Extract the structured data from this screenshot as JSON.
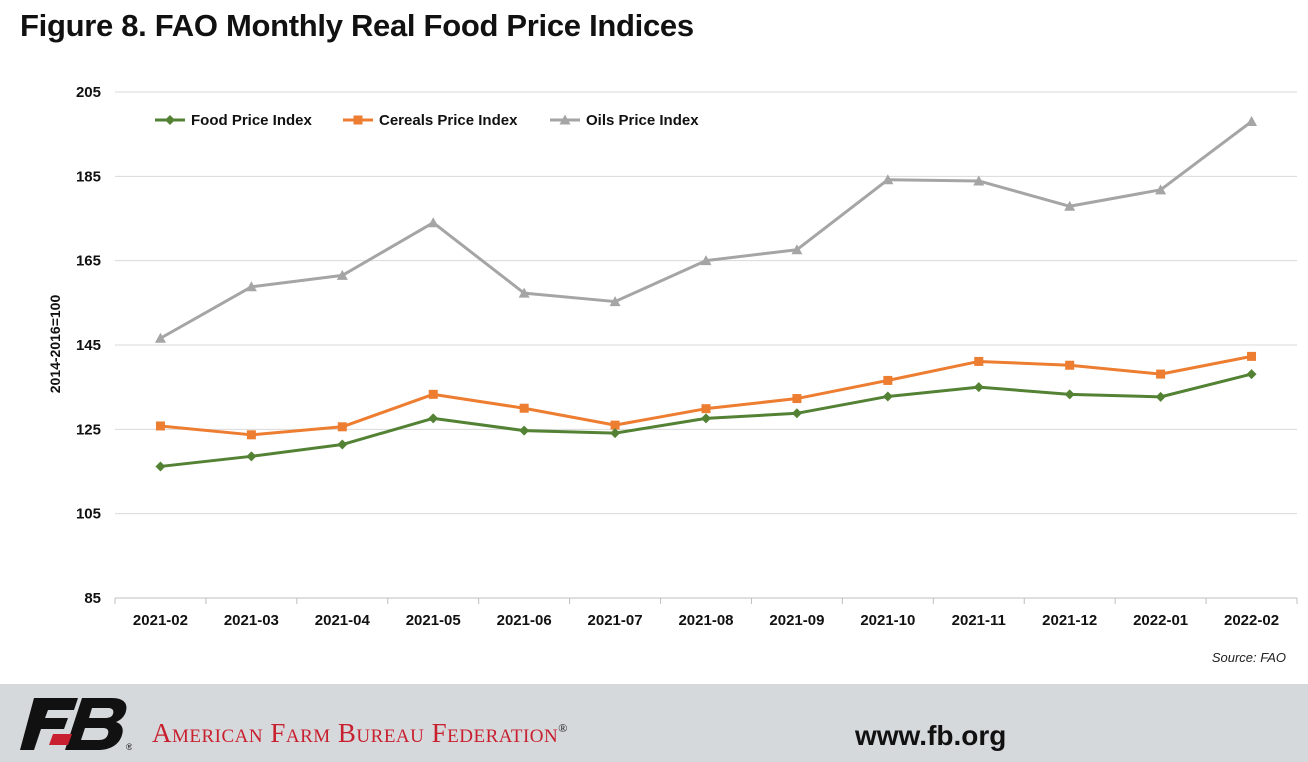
{
  "title": "Figure 8. FAO Monthly Real Food Price Indices",
  "source": "Source: FAO",
  "footer": {
    "org_name": "American Farm Bureau Federation",
    "registered_mark": "®",
    "url": "www.fb.org",
    "logo_letters": "FB"
  },
  "colors": {
    "food": "#548235",
    "cereals": "#ed7d31",
    "oils": "#a5a5a5",
    "gridline": "#d9d9d9",
    "footer_bg": "#d6d9dc",
    "brand_red": "#c8202f"
  },
  "chart_data": {
    "type": "line",
    "title": "Figure 8. FAO Monthly Real Food Price Indices",
    "xlabel": "",
    "ylabel": "2014-2016=100",
    "ylim": [
      85,
      205
    ],
    "yticks": [
      85,
      105,
      125,
      145,
      165,
      185,
      205
    ],
    "grid": true,
    "legend_position": "top-left",
    "categories": [
      "2021-02",
      "2021-03",
      "2021-04",
      "2021-05",
      "2021-06",
      "2021-07",
      "2021-08",
      "2021-09",
      "2021-10",
      "2021-11",
      "2021-12",
      "2022-01",
      "2022-02"
    ],
    "series": [
      {
        "name": "Food Price Index",
        "marker": "diamond",
        "color": "#548235",
        "values": [
          116.2,
          118.6,
          121.4,
          127.6,
          124.7,
          124.1,
          127.6,
          128.8,
          132.8,
          135.0,
          133.3,
          132.7,
          138.1
        ]
      },
      {
        "name": "Cereals Price Index",
        "marker": "square",
        "color": "#ed7d31",
        "values": [
          125.8,
          123.7,
          125.6,
          133.3,
          130.0,
          126.0,
          129.9,
          132.3,
          136.6,
          141.1,
          140.2,
          138.1,
          142.3
        ]
      },
      {
        "name": "Oils Price Index",
        "marker": "triangle",
        "color": "#a5a5a5",
        "values": [
          146.6,
          158.8,
          161.5,
          174.0,
          157.3,
          155.3,
          165.0,
          167.6,
          184.2,
          183.9,
          177.9,
          181.8,
          198.0
        ]
      }
    ]
  }
}
